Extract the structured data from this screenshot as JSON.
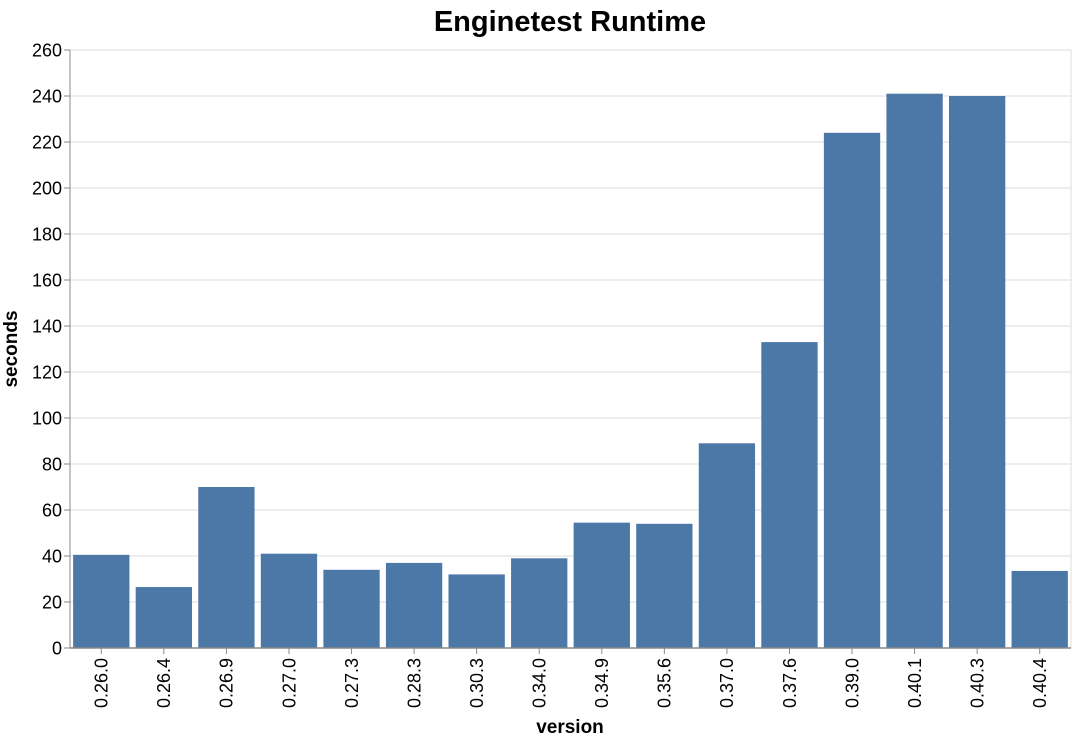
{
  "chart_data": {
    "type": "bar",
    "title": "Enginetest Runtime",
    "xlabel": "version",
    "ylabel": "seconds",
    "categories": [
      "0.26.0",
      "0.26.4",
      "0.26.9",
      "0.27.0",
      "0.27.3",
      "0.28.3",
      "0.30.3",
      "0.34.0",
      "0.34.9",
      "0.35.6",
      "0.37.0",
      "0.37.6",
      "0.39.0",
      "0.40.1",
      "0.40.3",
      "0.40.4"
    ],
    "values": [
      40.5,
      26.5,
      70,
      41,
      34,
      37,
      32,
      39,
      54.5,
      54,
      89,
      133,
      224,
      241,
      240,
      33.5
    ],
    "ylim": [
      0,
      260
    ],
    "ytick_step": 20,
    "grid": true,
    "legend": "none",
    "label_angle_deg": -90,
    "colors": {
      "bar": "#4c78a8",
      "grid": "#dddddd",
      "axis": "#888888",
      "text": "#000000",
      "background": "#ffffff"
    }
  }
}
